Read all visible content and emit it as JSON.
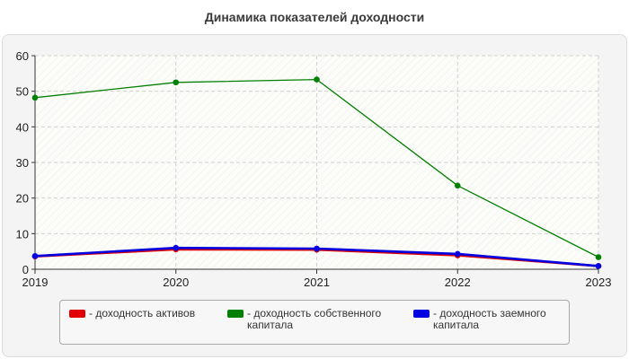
{
  "chart_data": {
    "type": "line",
    "title": "Динамика показателей доходности",
    "xlabel": "",
    "ylabel": "",
    "x": [
      "2019",
      "2020",
      "2021",
      "2022",
      "2023"
    ],
    "ylim": [
      0,
      60
    ],
    "yticks": [
      "0",
      "10",
      "20",
      "30",
      "40",
      "50",
      "60"
    ],
    "grid": true,
    "legend_position": "bottom",
    "series": [
      {
        "name": "- доходность активов",
        "color": "#e00000",
        "values": [
          3.6,
          5.6,
          5.5,
          3.9,
          0.9
        ]
      },
      {
        "name": "- доходность собственного капитала",
        "color": "#008000",
        "values": [
          48.2,
          52.5,
          53.3,
          23.5,
          3.4
        ]
      },
      {
        "name": "- доходность заемного капитала",
        "color": "#0000e0",
        "values": [
          3.7,
          6.0,
          5.8,
          4.3,
          0.9
        ]
      }
    ]
  }
}
